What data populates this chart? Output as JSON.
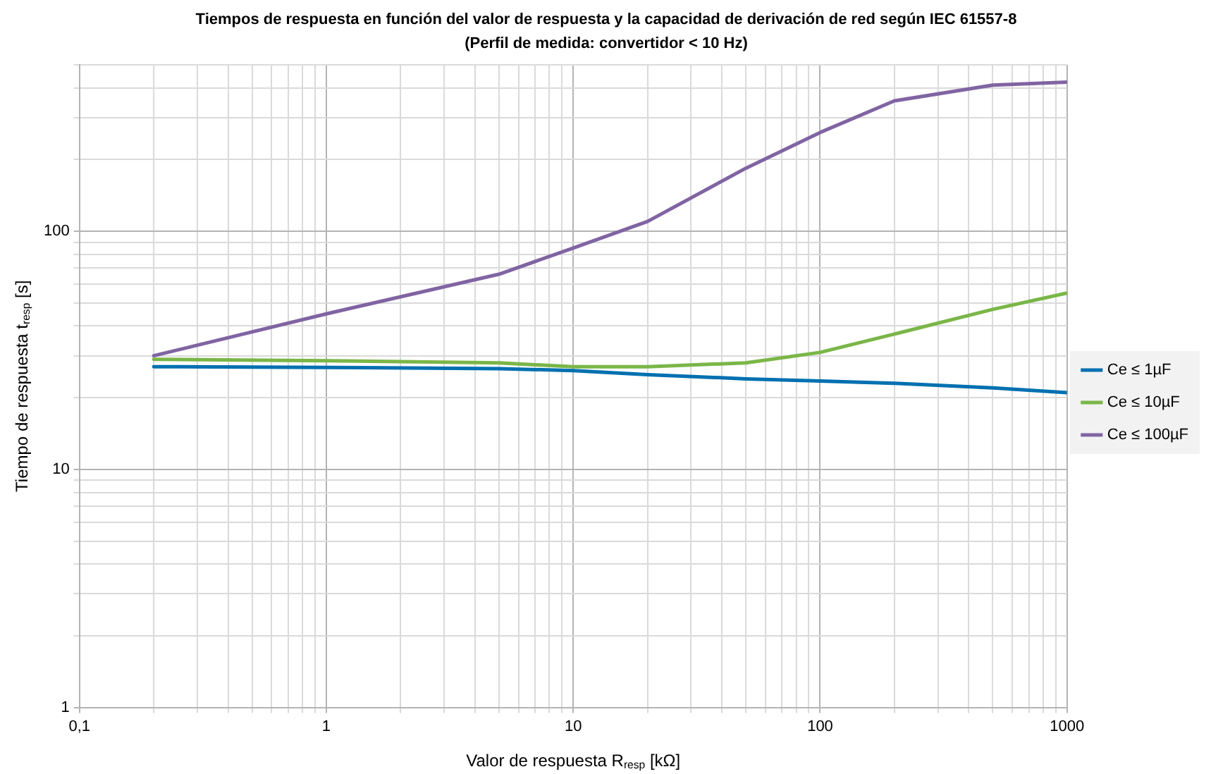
{
  "chart_data": {
    "type": "line",
    "title": "Tiempos de respuesta en función del valor de respuesta y la capacidad de derivación de red según IEC 61557-8",
    "subtitle": "(Perfil de medida: convertidor < 10 Hz)",
    "xlabel": "Valor de respuesta R$_{resp}$ [kΩ]",
    "ylabel": "Tiempo de respuesta t$_{resp}$ [s]",
    "x": [
      0.2,
      1,
      5,
      10,
      20,
      50,
      100,
      200,
      500,
      1000
    ],
    "series": [
      {
        "name": "Ce ≤ 1µF",
        "color": "#0070b0",
        "values": [
          27,
          26.8,
          26.5,
          26,
          25,
          24,
          23.5,
          23,
          22,
          21
        ]
      },
      {
        "name": "Ce ≤ 10µF",
        "color": "#7ab648",
        "values": [
          29,
          28.6,
          28,
          27,
          27,
          28,
          31,
          37,
          47,
          55
        ]
      },
      {
        "name": "Ce ≤ 100µF",
        "color": "#8064a2",
        "values": [
          30,
          45,
          66,
          85,
          110,
          184,
          260,
          353,
          411,
          423
        ]
      }
    ],
    "log": "xy",
    "xlim": [
      0.1,
      1000
    ],
    "ylim": [
      1,
      500
    ],
    "xticks": [
      {
        "value": 0.1,
        "label": "0,1"
      },
      {
        "value": 0.2,
        "label": null
      },
      {
        "value": 0.3,
        "label": null
      },
      {
        "value": 0.4,
        "label": null
      },
      {
        "value": 0.5,
        "label": null
      },
      {
        "value": 0.6,
        "label": null
      },
      {
        "value": 0.7,
        "label": null
      },
      {
        "value": 0.8,
        "label": null
      },
      {
        "value": 0.9,
        "label": null
      },
      1,
      {
        "value": 2,
        "label": null
      },
      {
        "value": 3,
        "label": null
      },
      {
        "value": 4,
        "label": null
      },
      {
        "value": 5,
        "label": null
      },
      {
        "value": 6,
        "label": null
      },
      {
        "value": 7,
        "label": null
      },
      {
        "value": 8,
        "label": null
      },
      {
        "value": 9,
        "label": null
      },
      10,
      {
        "value": 20,
        "label": null
      },
      {
        "value": 30,
        "label": null
      },
      {
        "value": 40,
        "label": null
      },
      {
        "value": 50,
        "label": null
      },
      {
        "value": 60,
        "label": null
      },
      {
        "value": 70,
        "label": null
      },
      {
        "value": 80,
        "label": null
      },
      {
        "value": 90,
        "label": null
      },
      100,
      {
        "value": 200,
        "label": null
      },
      {
        "value": 300,
        "label": null
      },
      {
        "value": 400,
        "label": null
      },
      {
        "value": 500,
        "label": null
      },
      {
        "value": 600,
        "label": null
      },
      {
        "value": 700,
        "label": null
      },
      {
        "value": 800,
        "label": null
      },
      {
        "value": 900,
        "label": null
      },
      1000
    ],
    "yticks": [
      1,
      {
        "value": 2,
        "label": null
      },
      {
        "value": 3,
        "label": null
      },
      {
        "value": 4,
        "label": null
      },
      {
        "value": 5,
        "label": null
      },
      {
        "value": 6,
        "label": null
      },
      {
        "value": 7,
        "label": null
      },
      {
        "value": 8,
        "label": null
      },
      {
        "value": 9,
        "label": null
      },
      10,
      {
        "value": 20,
        "label": null
      },
      {
        "value": 30,
        "label": null
      },
      {
        "value": 40,
        "label": null
      },
      {
        "value": 50,
        "label": null
      },
      {
        "value": 60,
        "label": null
      },
      {
        "value": 70,
        "label": null
      },
      {
        "value": 80,
        "label": null
      },
      {
        "value": 90,
        "label": null
      },
      100,
      {
        "value": 200,
        "label": null
      },
      {
        "value": 300,
        "label": null
      },
      {
        "value": 400,
        "label": null
      },
      {
        "value": 500,
        "label": null
      }
    ],
    "grid": true,
    "legend": "right",
    "marker": "none",
    "line_style": "solid"
  }
}
